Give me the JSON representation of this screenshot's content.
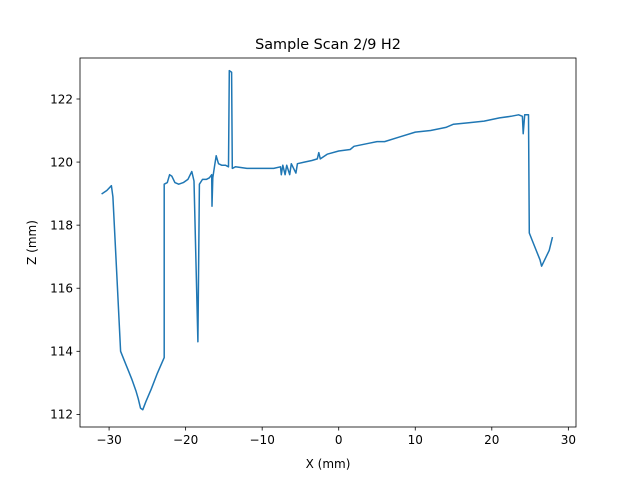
{
  "chart_data": {
    "type": "line",
    "title": "Sample Scan 2/9 H2",
    "xlabel": "X (mm)",
    "ylabel": "Z (mm)",
    "xlim": [
      -33.8,
      31.0
    ],
    "ylim": [
      111.6,
      123.3
    ],
    "xticks": [
      -30,
      -20,
      -10,
      0,
      10,
      20,
      30
    ],
    "xtick_labels": [
      "−30",
      "−20",
      "−10",
      "0",
      "10",
      "20",
      "30"
    ],
    "yticks": [
      112,
      114,
      116,
      118,
      120,
      122
    ],
    "ytick_labels": [
      "112",
      "114",
      "116",
      "118",
      "120",
      "122"
    ],
    "grid": false,
    "series": [
      {
        "color": "#1f77b4",
        "points": [
          [
            -30.9,
            119.0
          ],
          [
            -30.3,
            119.1
          ],
          [
            -29.7,
            119.25
          ],
          [
            -29.5,
            118.9
          ],
          [
            -29.0,
            116.5
          ],
          [
            -28.5,
            114.0
          ],
          [
            -28.0,
            113.7
          ],
          [
            -27.5,
            113.4
          ],
          [
            -27.0,
            113.1
          ],
          [
            -26.5,
            112.75
          ],
          [
            -26.2,
            112.5
          ],
          [
            -25.9,
            112.2
          ],
          [
            -25.6,
            112.15
          ],
          [
            -25.2,
            112.4
          ],
          [
            -24.5,
            112.8
          ],
          [
            -23.7,
            113.3
          ],
          [
            -22.8,
            113.8
          ],
          [
            -22.8,
            119.3
          ],
          [
            -22.4,
            119.35
          ],
          [
            -22.1,
            119.6
          ],
          [
            -21.8,
            119.55
          ],
          [
            -21.4,
            119.35
          ],
          [
            -20.9,
            119.3
          ],
          [
            -20.3,
            119.35
          ],
          [
            -19.7,
            119.45
          ],
          [
            -19.2,
            119.7
          ],
          [
            -18.9,
            119.4
          ],
          [
            -18.4,
            114.3
          ],
          [
            -18.2,
            119.3
          ],
          [
            -17.8,
            119.45
          ],
          [
            -17.3,
            119.45
          ],
          [
            -16.9,
            119.5
          ],
          [
            -16.6,
            119.6
          ],
          [
            -16.55,
            118.6
          ],
          [
            -16.45,
            119.5
          ],
          [
            -16.2,
            119.9
          ],
          [
            -16.0,
            120.2
          ],
          [
            -15.7,
            119.95
          ],
          [
            -15.3,
            119.9
          ],
          [
            -14.8,
            119.9
          ],
          [
            -14.4,
            119.85
          ],
          [
            -14.3,
            122.9
          ],
          [
            -14.0,
            122.85
          ],
          [
            -13.9,
            119.8
          ],
          [
            -13.5,
            119.85
          ],
          [
            -12.0,
            119.8
          ],
          [
            -10.0,
            119.8
          ],
          [
            -8.5,
            119.8
          ],
          [
            -7.6,
            119.85
          ],
          [
            -7.5,
            119.6
          ],
          [
            -7.3,
            119.9
          ],
          [
            -7.0,
            119.6
          ],
          [
            -6.8,
            119.9
          ],
          [
            -6.4,
            119.6
          ],
          [
            -6.2,
            119.95
          ],
          [
            -5.6,
            119.65
          ],
          [
            -5.4,
            119.95
          ],
          [
            -4.5,
            120.0
          ],
          [
            -3.5,
            120.05
          ],
          [
            -2.8,
            120.1
          ],
          [
            -2.6,
            120.3
          ],
          [
            -2.4,
            120.1
          ],
          [
            -1.5,
            120.25
          ],
          [
            0.0,
            120.35
          ],
          [
            1.5,
            120.4
          ],
          [
            2.0,
            120.5
          ],
          [
            4.0,
            120.6
          ],
          [
            5.0,
            120.65
          ],
          [
            6.0,
            120.65
          ],
          [
            8.0,
            120.8
          ],
          [
            10.0,
            120.95
          ],
          [
            12.0,
            121.0
          ],
          [
            14.0,
            121.1
          ],
          [
            15.0,
            121.2
          ],
          [
            17.0,
            121.25
          ],
          [
            19.0,
            121.3
          ],
          [
            21.0,
            121.4
          ],
          [
            22.5,
            121.45
          ],
          [
            23.5,
            121.5
          ],
          [
            24.0,
            121.45
          ],
          [
            24.1,
            120.9
          ],
          [
            24.3,
            121.5
          ],
          [
            24.8,
            121.5
          ],
          [
            24.9,
            117.75
          ],
          [
            25.3,
            117.5
          ],
          [
            25.8,
            117.2
          ],
          [
            26.3,
            116.9
          ],
          [
            26.5,
            116.7
          ],
          [
            27.0,
            116.95
          ],
          [
            27.5,
            117.2
          ],
          [
            27.9,
            117.6
          ]
        ]
      }
    ]
  }
}
